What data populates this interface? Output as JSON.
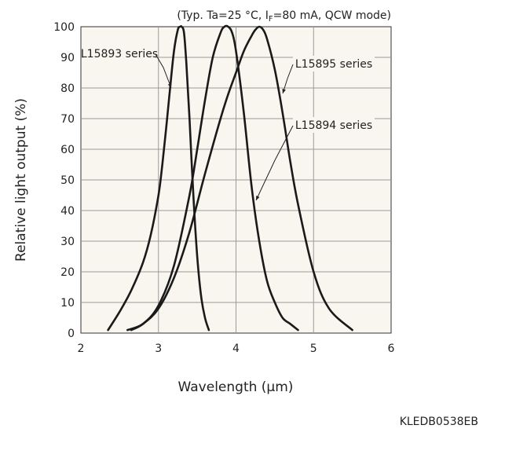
{
  "chart_data": {
    "type": "line",
    "conditions_note": "(Typ. Ta=25 °C, I",
    "conditions_sub": "F",
    "conditions_rest": "=80 mA, QCW mode)",
    "xlabel": "Wavelength (μm)",
    "ylabel": "Relative light output (%)",
    "xlim": [
      2,
      6
    ],
    "ylim": [
      0,
      100
    ],
    "xticks": [
      "2",
      "3",
      "4",
      "5",
      "6"
    ],
    "yticks": [
      "0",
      "10",
      "20",
      "30",
      "40",
      "50",
      "60",
      "70",
      "80",
      "90",
      "100"
    ],
    "grid": true,
    "plot_background": "#f8f6ee",
    "line_color": "#1a1a1a",
    "series": [
      {
        "name": "L15893 series",
        "x": [
          2.35,
          2.5,
          2.65,
          2.8,
          2.9,
          3.0,
          3.05,
          3.1,
          3.15,
          3.2,
          3.25,
          3.28,
          3.3,
          3.33,
          3.36,
          3.4,
          3.45,
          3.5,
          3.55,
          3.6,
          3.65
        ],
        "y": [
          1,
          7,
          14,
          23,
          32,
          45,
          55,
          67,
          80,
          92,
          99,
          100,
          100,
          98,
          88,
          70,
          45,
          25,
          12,
          5,
          1
        ]
      },
      {
        "name": "L15894 series",
        "x": [
          2.6,
          2.8,
          3.0,
          3.2,
          3.4,
          3.5,
          3.6,
          3.7,
          3.8,
          3.85,
          3.9,
          3.95,
          4.0,
          4.1,
          4.2,
          4.3,
          4.4,
          4.5,
          4.6,
          4.7,
          4.8
        ],
        "y": [
          1,
          3,
          9,
          22,
          45,
          60,
          76,
          90,
          98,
          100,
          100,
          98,
          92,
          72,
          48,
          30,
          17,
          10,
          5,
          3,
          1
        ]
      },
      {
        "name": "L15895 series",
        "x": [
          2.65,
          2.8,
          3.0,
          3.2,
          3.4,
          3.6,
          3.8,
          3.9,
          4.0,
          4.1,
          4.2,
          4.25,
          4.3,
          4.35,
          4.4,
          4.5,
          4.6,
          4.7,
          4.8,
          5.0,
          5.2,
          5.5
        ],
        "y": [
          1,
          3,
          8,
          18,
          33,
          52,
          70,
          78,
          85,
          92,
          97,
          99,
          100,
          99,
          96,
          86,
          72,
          56,
          42,
          20,
          8,
          1
        ]
      }
    ],
    "annotations": [
      {
        "text": "L15893 series",
        "points_to_series": "L15893 series"
      },
      {
        "text": "L15895 series",
        "points_to_series": "L15895 series"
      },
      {
        "text": "L15894 series",
        "points_to_series": "L15894 series"
      }
    ]
  },
  "figure_code": "KLEDB0538EB"
}
